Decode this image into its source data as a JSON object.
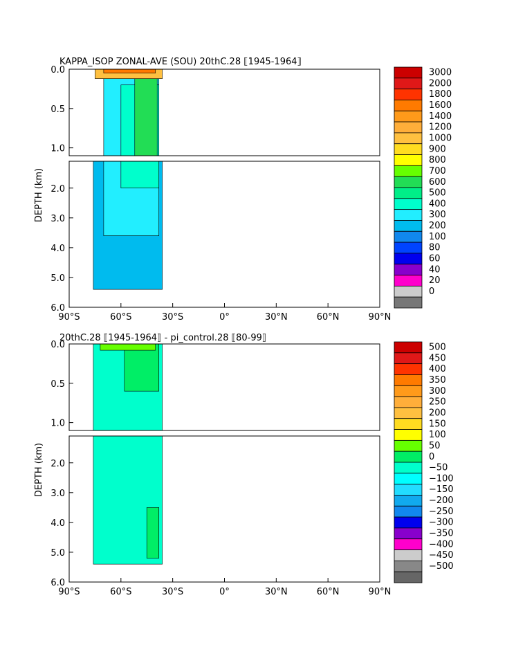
{
  "chart_data": [
    {
      "type": "heatmap",
      "title": "KAPPA_ISOP ZONAL-AVE (SOU) 20thC.28 ⟦1945-1964⟧",
      "ylabel": "DEPTH (km)",
      "xlabel": "",
      "x_ticks": [
        "90°S",
        "60°S",
        "30°S",
        "0°",
        "30°N",
        "60°N",
        "90°N"
      ],
      "y_ticks_upper": [
        "0.0",
        "0.5",
        "1.0"
      ],
      "y_ticks_lower": [
        "2.0",
        "3.0",
        "4.0",
        "5.0",
        "6.0"
      ],
      "xlim": [
        -90,
        90
      ],
      "ylim": [
        6.0,
        0.0
      ],
      "colorbar": {
        "labels": [
          "3000",
          "2000",
          "1800",
          "1600",
          "1400",
          "1200",
          "1000",
          "900",
          "800",
          "700",
          "600",
          "500",
          "400",
          "300",
          "200",
          "100",
          "80",
          "60",
          "40",
          "20",
          "0"
        ],
        "colors": [
          "#cc0000",
          "#e01818",
          "#ff3300",
          "#ff7a00",
          "#ff9a1a",
          "#ffae3a",
          "#ffc040",
          "#ffdc20",
          "#ffff00",
          "#66ff00",
          "#22dd55",
          "#00ee88",
          "#00ffcc",
          "#22eeff",
          "#00bbee",
          "#1188ee",
          "#0044ff",
          "#0000ee",
          "#8800cc",
          "#ff00cc",
          "#cccccc",
          "#777777"
        ]
      },
      "regions": [
        {
          "x": [
            -76,
            -36
          ],
          "y": [
            1.1,
            5.4
          ],
          "value": 250
        },
        {
          "x": [
            -70,
            -38
          ],
          "y": [
            0.1,
            3.6
          ],
          "value": 350
        },
        {
          "x": [
            -60,
            -38
          ],
          "y": [
            0.2,
            2.0
          ],
          "value": 450
        },
        {
          "x": [
            -52,
            -39
          ],
          "y": [
            0.1,
            1.1
          ],
          "value": 620
        },
        {
          "x": [
            -75,
            -36
          ],
          "y": [
            0.0,
            0.12
          ],
          "value": 1000
        },
        {
          "x": [
            -70,
            -40
          ],
          "y": [
            0.0,
            0.05
          ],
          "value": 1700
        }
      ]
    },
    {
      "type": "heatmap",
      "title": "20thC.28 ⟦1945-1964⟧ - pi_control.28 ⟦80-99⟧",
      "ylabel": "DEPTH (km)",
      "xlabel": "",
      "x_ticks": [
        "90°S",
        "60°S",
        "30°S",
        "0°",
        "30°N",
        "60°N",
        "90°N"
      ],
      "y_ticks_upper": [
        "0.0",
        "0.5",
        "1.0"
      ],
      "y_ticks_lower": [
        "2.0",
        "3.0",
        "4.0",
        "5.0",
        "6.0"
      ],
      "xlim": [
        -90,
        90
      ],
      "ylim": [
        6.0,
        0.0
      ],
      "colorbar": {
        "labels": [
          "500",
          "450",
          "400",
          "350",
          "300",
          "250",
          "200",
          "150",
          "100",
          "50",
          "0",
          "−50",
          "−100",
          "−150",
          "−200",
          "−250",
          "−300",
          "−350",
          "−400",
          "−450",
          "−500"
        ],
        "colors": [
          "#cc0000",
          "#e01818",
          "#ff3300",
          "#ff7a00",
          "#ff9a1a",
          "#ffae3a",
          "#ffc040",
          "#ffdc20",
          "#ffff00",
          "#66ff00",
          "#00ee66",
          "#00ffcc",
          "#00ffff",
          "#22ddff",
          "#11aaee",
          "#1188ee",
          "#0000ee",
          "#8800cc",
          "#ff00cc",
          "#cccccc",
          "#888888",
          "#666666"
        ]
      },
      "regions": [
        {
          "x": [
            -76,
            -36
          ],
          "y": [
            0.0,
            5.4
          ],
          "value": -25
        },
        {
          "x": [
            -58,
            -38
          ],
          "y": [
            0.0,
            0.6
          ],
          "value": 25
        },
        {
          "x": [
            -45,
            -38
          ],
          "y": [
            3.5,
            5.2
          ],
          "value": 25
        },
        {
          "x": [
            -72,
            -40
          ],
          "y": [
            0.0,
            0.08
          ],
          "value": 75
        }
      ]
    }
  ]
}
